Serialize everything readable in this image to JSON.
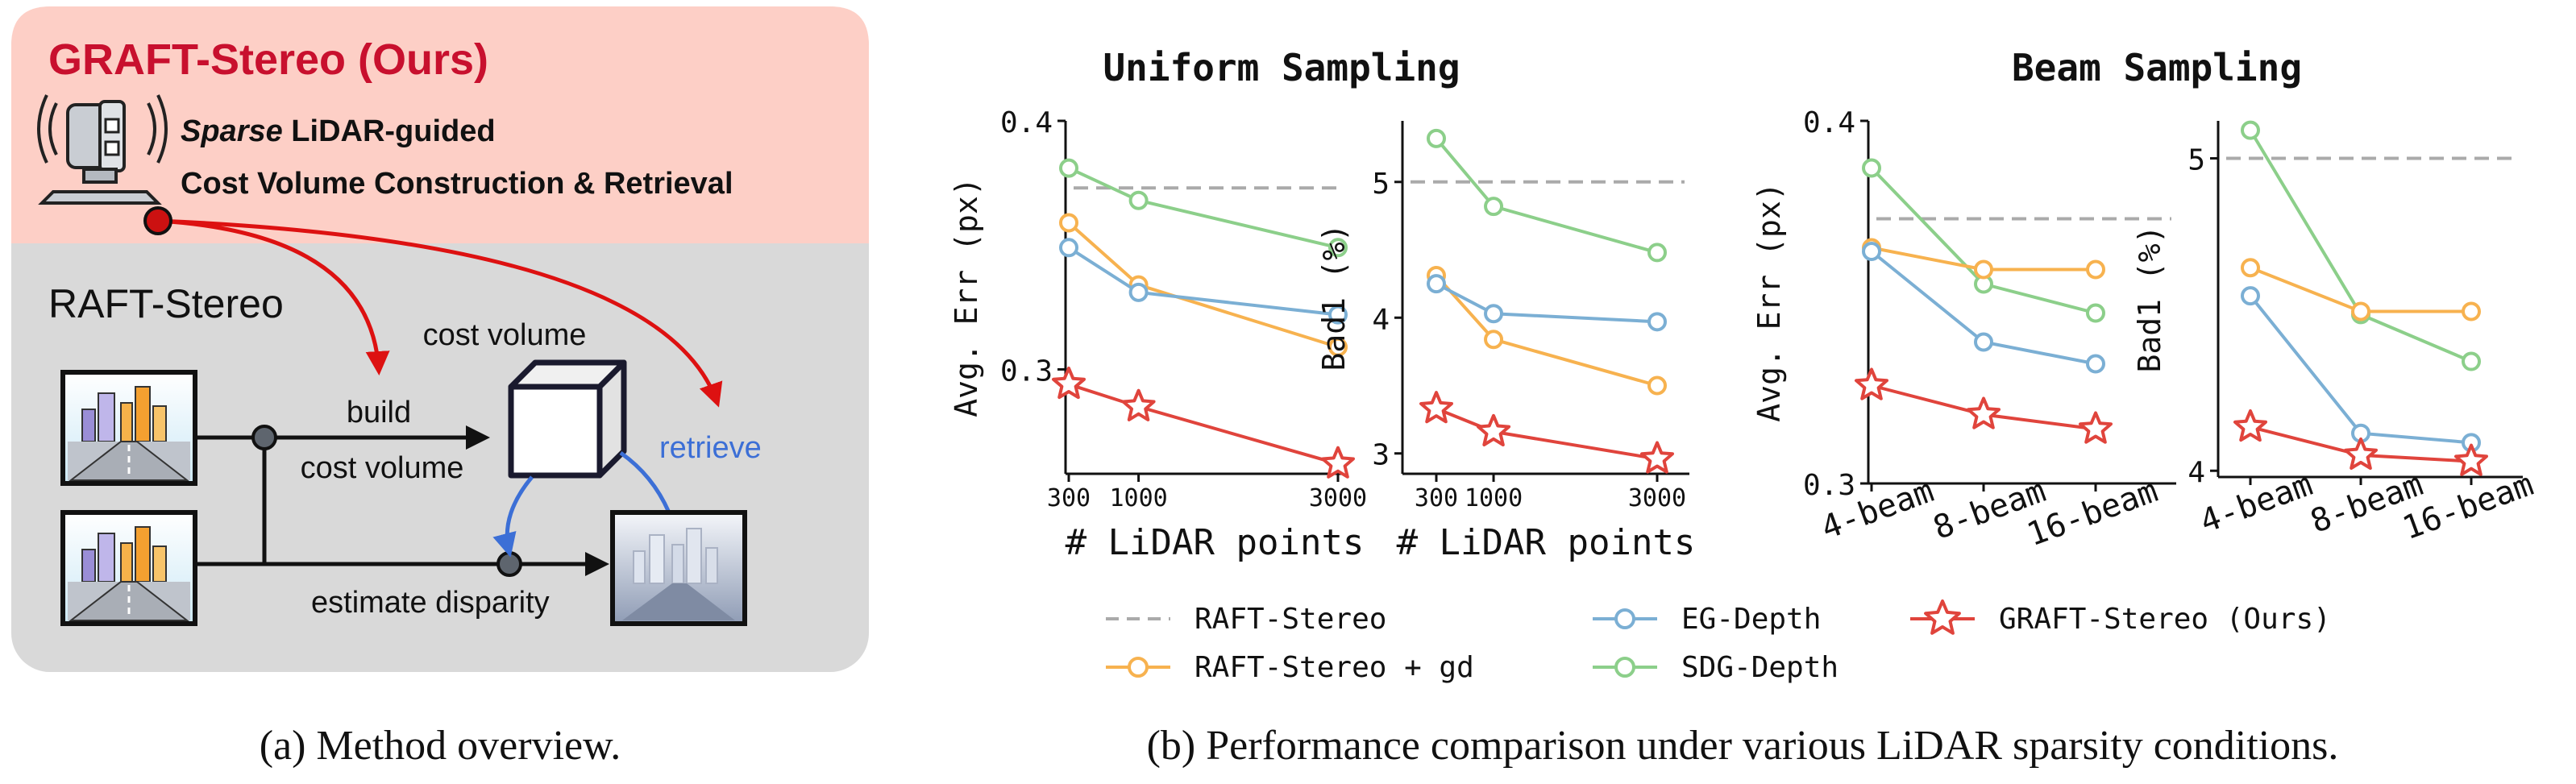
{
  "overview": {
    "graft_title": "GRAFT-Stereo (Ours)",
    "line1_em": "Sparse",
    "line1_rest": " LiDAR-guided",
    "line2": "Cost Volume Construction & Retrieval",
    "raft_title": "RAFT-Stereo",
    "cost_volume": "cost volume",
    "build": "build",
    "cost_volume_2": "cost volume",
    "retrieve": "retrieve",
    "estimate": "estimate disparity",
    "colors": {
      "red": "#dd1111",
      "blue": "#3c6fd6",
      "top_bg": "#fdcfc6",
      "bottom_bg": "#d9d9d9"
    },
    "icons": [
      "lidar-sensor-icon",
      "city-image-icon",
      "cost-volume-cube-icon",
      "disparity-image-icon"
    ]
  },
  "captions": {
    "a": "(a) Method overview.",
    "b": "(b) Performance comparison under various LiDAR sparsity conditions."
  },
  "groups": {
    "uniform": "Uniform Sampling",
    "beam": "Beam Sampling"
  },
  "legend": [
    {
      "name": "RAFT-Stereo",
      "color": "#aaaaaa",
      "style": "dashed"
    },
    {
      "name": "EG-Depth",
      "color": "#7bafd4",
      "style": "circle"
    },
    {
      "name": "GRAFT-Stereo (Ours)",
      "color": "#e0443c",
      "style": "star"
    },
    {
      "name": "RAFT-Stereo + gd",
      "color": "#f7b24f",
      "style": "circle"
    },
    {
      "name": "SDG-Depth",
      "color": "#8ccf8a",
      "style": "circle"
    }
  ],
  "chart_data": [
    {
      "type": "line",
      "title": "Uniform Sampling (Avg. Err)",
      "xlabel": "# LiDAR points",
      "ylabel": "Avg. Err (px)",
      "x_numeric": [
        300,
        1000,
        3000
      ],
      "xticks": [
        "300",
        "1000",
        "3000"
      ],
      "xlim": [
        300,
        3000
      ],
      "ylim": [
        0.258,
        0.4
      ],
      "yticks": [
        0.3,
        0.4
      ],
      "ytick_labels": [
        "0.3",
        "0.4"
      ],
      "baseline": {
        "name": "RAFT-Stereo",
        "value": 0.373
      },
      "series": [
        {
          "name": "SDG-Depth",
          "values": [
            0.381,
            0.368,
            0.349
          ]
        },
        {
          "name": "RAFT-Stereo + gd",
          "values": [
            0.359,
            0.334,
            0.309
          ]
        },
        {
          "name": "EG-Depth",
          "values": [
            0.349,
            0.331,
            0.322
          ]
        },
        {
          "name": "GRAFT-Stereo (Ours)",
          "values": [
            0.294,
            0.285,
            0.262
          ]
        }
      ]
    },
    {
      "type": "line",
      "title": "Uniform Sampling (Bad1)",
      "xlabel": "# LiDAR points",
      "ylabel": "Bad1 (%)",
      "x_numeric": [
        300,
        1000,
        3000
      ],
      "xticks": [
        "300",
        "1000",
        "3000"
      ],
      "xlim": [
        300,
        3000
      ],
      "ylim": [
        2.85,
        5.45
      ],
      "yticks": [
        3,
        4,
        5
      ],
      "ytick_labels": [
        "3",
        "4",
        "5"
      ],
      "baseline": {
        "name": "RAFT-Stereo",
        "value": 5.0
      },
      "series": [
        {
          "name": "SDG-Depth",
          "values": [
            5.32,
            4.82,
            4.48
          ]
        },
        {
          "name": "RAFT-Stereo + gd",
          "values": [
            4.31,
            3.84,
            3.5
          ]
        },
        {
          "name": "EG-Depth",
          "values": [
            4.25,
            4.03,
            3.97
          ]
        },
        {
          "name": "GRAFT-Stereo (Ours)",
          "values": [
            3.33,
            3.16,
            2.96
          ]
        }
      ]
    },
    {
      "type": "line",
      "title": "Beam Sampling (Avg. Err)",
      "xlabel": "",
      "ylabel": "Avg. Err (px)",
      "x_numeric": [
        0,
        1,
        2
      ],
      "xticks": [
        "4-beam",
        "8-beam",
        "16-beam"
      ],
      "xlim": [
        0,
        2
      ],
      "ylim": [
        0.3,
        0.4
      ],
      "yticks": [
        0.3,
        0.4
      ],
      "ytick_labels": [
        "0.3",
        "0.4"
      ],
      "baseline": {
        "name": "RAFT-Stereo",
        "value": 0.373
      },
      "series": [
        {
          "name": "SDG-Depth",
          "values": [
            0.387,
            0.355,
            0.347
          ]
        },
        {
          "name": "RAFT-Stereo + gd",
          "values": [
            0.365,
            0.359,
            0.359
          ]
        },
        {
          "name": "EG-Depth",
          "values": [
            0.364,
            0.339,
            0.333
          ]
        },
        {
          "name": "GRAFT-Stereo (Ours)",
          "values": [
            0.327,
            0.319,
            0.315
          ]
        }
      ]
    },
    {
      "type": "line",
      "title": "Beam Sampling (Bad1)",
      "xlabel": "",
      "ylabel": "Bad1 (%)",
      "x_numeric": [
        0,
        1,
        2
      ],
      "xticks": [
        "4-beam",
        "8-beam",
        "16-beam"
      ],
      "xlim": [
        0,
        2
      ],
      "ylim": [
        3.98,
        5.12
      ],
      "yticks": [
        4,
        5
      ],
      "ytick_labels": [
        "4",
        "5"
      ],
      "baseline": {
        "name": "RAFT-Stereo",
        "value": 5.0
      },
      "series": [
        {
          "name": "SDG-Depth",
          "values": [
            5.09,
            4.5,
            4.35
          ]
        },
        {
          "name": "RAFT-Stereo + gd",
          "values": [
            4.65,
            4.51,
            4.51
          ]
        },
        {
          "name": "EG-Depth",
          "values": [
            4.56,
            4.12,
            4.09
          ]
        },
        {
          "name": "GRAFT-Stereo (Ours)",
          "values": [
            4.14,
            4.05,
            4.03
          ]
        }
      ]
    }
  ]
}
